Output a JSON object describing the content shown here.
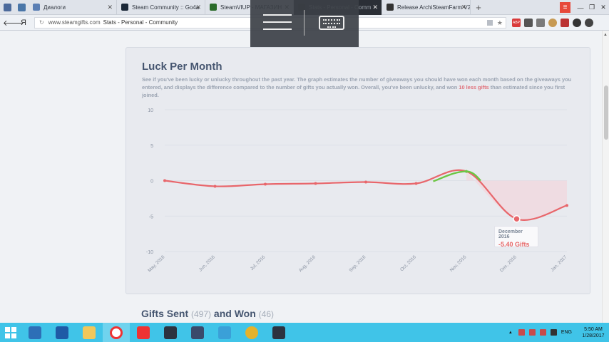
{
  "browser": {
    "tabs": [
      {
        "label": "Диалоги",
        "color": "#5b7fb4",
        "active": false
      },
      {
        "label": "Steam Community :: Go4a",
        "color": "#1b2838",
        "active": false
      },
      {
        "label": "SteamVIUP - МАГАЗИН",
        "color": "#2a6b2a",
        "active": false
      },
      {
        "label": "Stats - Personal - Comm",
        "color": "#222222",
        "active": true
      },
      {
        "label": "Release ArchiSteamFarm V2",
        "color": "#333333",
        "active": false
      }
    ],
    "newtab": "+",
    "menu_icon": "≡",
    "win_min": "—",
    "win_max": "❐",
    "win_close": "✕",
    "back": "🡐",
    "yandex": "Я",
    "reload": "↻",
    "domain": "www.steamgifts.com",
    "page_title": "Stats - Personal - Community",
    "star": "★",
    "abp": "ABP"
  },
  "card": {
    "title": "Luck Per Month",
    "desc_part1": "See if you've been lucky or unlucky throughout the past year. The graph estimates the number of giveaways you should have won each month based on the giveaways you entered, and displays the difference compared to the number of gifts you actually won. Overall, you've been unlucky, and won ",
    "desc_highlight": "10 less gifts",
    "desc_part2": " than estimated since you first joined."
  },
  "tooltip": {
    "date": "December 2016",
    "value": "-5.40 Gifts"
  },
  "section2": {
    "title1": "Gifts Sent",
    "count1": "(497)",
    "title2": "and Won",
    "count2": "(46)"
  },
  "chart_data": {
    "type": "line",
    "categories": [
      "May, 2016",
      "Jun, 2016",
      "Jul, 2016",
      "Aug, 2016",
      "Sep, 2016",
      "Oct, 2016",
      "Nov, 2016",
      "Dec, 2016",
      "Jan, 2017"
    ],
    "values": [
      0,
      -0.8,
      -0.5,
      -0.4,
      -0.2,
      -0.4,
      1.3,
      -5.4,
      -3.5
    ],
    "ylim": [
      -10,
      10
    ],
    "yticks": [
      10,
      5,
      0,
      -5,
      -10
    ],
    "grid": true,
    "positive_color": "#6cc644",
    "negative_color": "#e8666b",
    "negative_fill": "#f0d8de",
    "title": "",
    "xlabel": "",
    "ylabel": ""
  },
  "taskbar": {
    "lang": "ENG",
    "time": "5:50 AM",
    "date": "1/28/2017",
    "tray_arrow": "▲"
  }
}
